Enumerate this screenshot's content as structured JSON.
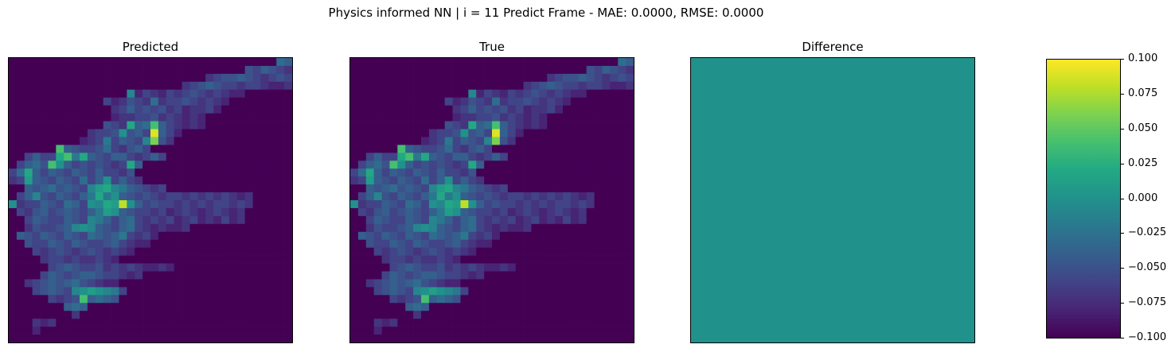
{
  "chart_data": {
    "type": "heatmap",
    "title": "Physics informed NN | i = 11 Predict Frame - MAE: 0.0000, RMSE: 0.0000",
    "grid_size": [
      36,
      36
    ],
    "panels": [
      {
        "title": "Predicted"
      },
      {
        "title": "True"
      },
      {
        "title": "Difference",
        "uniform_value": 0.0
      }
    ],
    "field_values": {
      "background": 0.0,
      "rows": [
        [
          34,
          0.35,
          0.3,
          0.25,
          0.3,
          0.3,
          0.25,
          0.3,
          0.25,
          0.2,
          0.2
        ],
        [
          30,
          0.25,
          0.2,
          0.3,
          0.25,
          0.2,
          0.15,
          0.3,
          0.25,
          0.2,
          0.2,
          0.15,
          0.1
        ],
        [
          25,
          0.15,
          0.2,
          0.25,
          0.25,
          0.3,
          0.25,
          0.2,
          0.15,
          0.2,
          0.25,
          0.2,
          0.15,
          0.1
        ],
        [
          22,
          0.15,
          0.2,
          0.25,
          0.3,
          0.25,
          0.2,
          0.2,
          0.15,
          0.2,
          0.2,
          0.15,
          0.1,
          0.1,
          0.15
        ],
        [
          15,
          0.45,
          0.1,
          0.2,
          0.15,
          0.1,
          0.2,
          0.15,
          0.2,
          0.25,
          0.2,
          0.15,
          0.2,
          0.15,
          0.1,
          0.1
        ],
        [
          12,
          0.2,
          0.1,
          0.15,
          0.25,
          0.2,
          0.15,
          0.35,
          0.15,
          0.2,
          0.2,
          0.25,
          0.2,
          0.15,
          0.2,
          0.15,
          0.1
        ],
        [
          13,
          0.15,
          0.2,
          0.3,
          0.2,
          0.25,
          0.2,
          0.25,
          0.15,
          0.2,
          0.1,
          0.15,
          0.15,
          0.2,
          0.1
        ],
        [
          13,
          0.1,
          0.15,
          0.15,
          0.2,
          0.2,
          0.25,
          0.15,
          0.2,
          0.15,
          0.1,
          0.15,
          0.1
        ],
        [
          12,
          0.25,
          0.2,
          0.15,
          0.6,
          0.3,
          0.35,
          0.7,
          0.3,
          0.2,
          0.15,
          0.1,
          0.15,
          0.1
        ],
        [
          10,
          0.15,
          0.2,
          0.2,
          0.25,
          0.5,
          0.25,
          0.3,
          0.2,
          0.95,
          0.3,
          0.2,
          0.1
        ],
        [
          9,
          0.1,
          0.15,
          0.2,
          0.4,
          0.2,
          0.3,
          0.25,
          0.2,
          0.45,
          0.8,
          0.25,
          0.15
        ],
        [
          6,
          0.7,
          0.3,
          0.25,
          0.2,
          0.2,
          0.25,
          0.35,
          0.2,
          0.15,
          0.25,
          0.3,
          0.2
        ],
        [
          2,
          0.2,
          0.3,
          0.2,
          0.2,
          0.6,
          0.7,
          0.4,
          0.6,
          0.3,
          0.25,
          0.2,
          0.3,
          0.3,
          0.2,
          0.15,
          0.2,
          0.3,
          0.2
        ],
        [
          1,
          0.2,
          0.3,
          0.35,
          0.25,
          0.7,
          0.5,
          0.3,
          0.2,
          0.25,
          0.2,
          0.25,
          0.2,
          0.15,
          0.2,
          0.6,
          0.3
        ],
        [
          0,
          0.2,
          0.35,
          0.6,
          0.3,
          0.2,
          0.3,
          0.25,
          0.2,
          0.3,
          0.25,
          0.2,
          0.3,
          0.2,
          0.2,
          0.15,
          0.25
        ],
        [
          0,
          0.15,
          0.2,
          0.55,
          0.3,
          0.25,
          0.2,
          0.3,
          0.25,
          0.2,
          0.35,
          0.2,
          0.3,
          0.5,
          0.2,
          0.3,
          0.2,
          0.15
        ],
        [
          2,
          0.3,
          0.25,
          0.3,
          0.35,
          0.25,
          0.3,
          0.25,
          0.2,
          0.45,
          0.55,
          0.6,
          0.45,
          0.4,
          0.3,
          0.25,
          0.2,
          0.15,
          0.2
        ],
        [
          1,
          0.2,
          0.3,
          0.45,
          0.25,
          0.2,
          0.3,
          0.25,
          0.2,
          0.3,
          0.4,
          0.6,
          0.4,
          0.5,
          0.3,
          0.25,
          0.2,
          0.25,
          0.2,
          0.15,
          0.2,
          0.2,
          0.15,
          0.2,
          0.15,
          0.2,
          0.15,
          0.2,
          0.15,
          0.1,
          0.15
        ],
        [
          0,
          0.5,
          0.15,
          0.2,
          0.2,
          0.3,
          0.25,
          0.2,
          0.35,
          0.3,
          0.2,
          0.5,
          0.45,
          0.6,
          0.55,
          0.9,
          0.5,
          0.3,
          0.2,
          0.25,
          0.2,
          0.2,
          0.15,
          0.2,
          0.15,
          0.2,
          0.15,
          0.2,
          0.2,
          0.15,
          0.2,
          0.15
        ],
        [
          1,
          0.2,
          0.15,
          0.25,
          0.3,
          0.2,
          0.25,
          0.3,
          0.25,
          0.2,
          0.3,
          0.4,
          0.55,
          0.5,
          0.3,
          0.25,
          0.2,
          0.2,
          0.15,
          0.2,
          0.1,
          0.15,
          0.2,
          0.15,
          0.1,
          0.15,
          0.2,
          0.15,
          0.1,
          0.15
        ],
        [
          2,
          0.2,
          0.3,
          0.25,
          0.2,
          0.2,
          0.3,
          0.25,
          0.2,
          0.45,
          0.4,
          0.3,
          0.2,
          0.3,
          0.35,
          0.2,
          0.15,
          0.2,
          0.15,
          0.2,
          0.1,
          0.15,
          0.2,
          0.1,
          0.15,
          0.1,
          0.2,
          0.1,
          0.15
        ],
        [
          2,
          0.15,
          0.25,
          0.2,
          0.2,
          0.25,
          0.3,
          0.45,
          0.5,
          0.45,
          0.3,
          0.25,
          0.2,
          0.3,
          0.35,
          0.2,
          0.15,
          0.1,
          0.15,
          0.1,
          0.1,
          0.15
        ],
        [
          1,
          0.3,
          0.25,
          0.2,
          0.3,
          0.25,
          0.2,
          0.3,
          0.25,
          0.2,
          0.35,
          0.3,
          0.25,
          0.3,
          0.4,
          0.2,
          0.15,
          0.2,
          0.1
        ],
        [
          2,
          0.25,
          0.2,
          0.2,
          0.3,
          0.25,
          0.2,
          0.3,
          0.25,
          0.2,
          0.2,
          0.25,
          0.3,
          0.2,
          0.15,
          0.1,
          0.1
        ],
        [
          3,
          0.2,
          0.15,
          0.2,
          0.25,
          0.2,
          0.15,
          0.2,
          0.25,
          0.2,
          0.15,
          0.2,
          0.15,
          0.1
        ],
        [
          4,
          0.15,
          0.2,
          0.2,
          0.15,
          0.2,
          0.15,
          0.15,
          0.2,
          0.15,
          0.1
        ],
        [
          5,
          0.2,
          0.25,
          0.3,
          0.25,
          0.2,
          0.2,
          0.25,
          0.15,
          0.2,
          0.15,
          0.2,
          0.15,
          0.1,
          0.1,
          0.15,
          0.1
        ],
        [
          4,
          0.2,
          0.3,
          0.25,
          0.2,
          0.25,
          0.3,
          0.3,
          0.25,
          0.2,
          0.2,
          0.15,
          0.1,
          0.15
        ],
        [
          2,
          0.15,
          0.2,
          0.25,
          0.3,
          0.25,
          0.3,
          0.35,
          0.25,
          0.2,
          0.15,
          0.1,
          0.1
        ],
        [
          3,
          0.2,
          0.25,
          0.3,
          0.25,
          0.2,
          0.45,
          0.5,
          0.55,
          0.5,
          0.45,
          0.4,
          0.2
        ],
        [
          5,
          0.2,
          0.15,
          0.2,
          0.25,
          0.7,
          0.3,
          0.35,
          0.3,
          0.25
        ],
        [
          7,
          0.3,
          0.35,
          0.3
        ],
        [
          8,
          0.15
        ],
        [
          3,
          0.15,
          0.1,
          0.15
        ],
        [
          3,
          0.1
        ]
      ],
      "comment_rows": "each row: [start_column, cell values...]; cells outside listed ranges are 0.0 (scaled relative to the panel's colormap)"
    },
    "colorbar": {
      "colormap": "viridis",
      "vmin": -0.1,
      "vmax": 0.1,
      "tick_labels": [
        "0.100",
        "0.075",
        "0.050",
        "0.025",
        "0.000",
        "−0.025",
        "−0.050",
        "−0.075",
        "−0.100"
      ]
    },
    "axes": {
      "xticks": [],
      "yticks": []
    }
  },
  "colors": {
    "viridis": [
      "#440154",
      "#482475",
      "#414487",
      "#355f8d",
      "#2a788e",
      "#21918c",
      "#22a884",
      "#44bf70",
      "#7ad151",
      "#bddf26",
      "#fde725"
    ],
    "difference_fill": "#21918c"
  }
}
